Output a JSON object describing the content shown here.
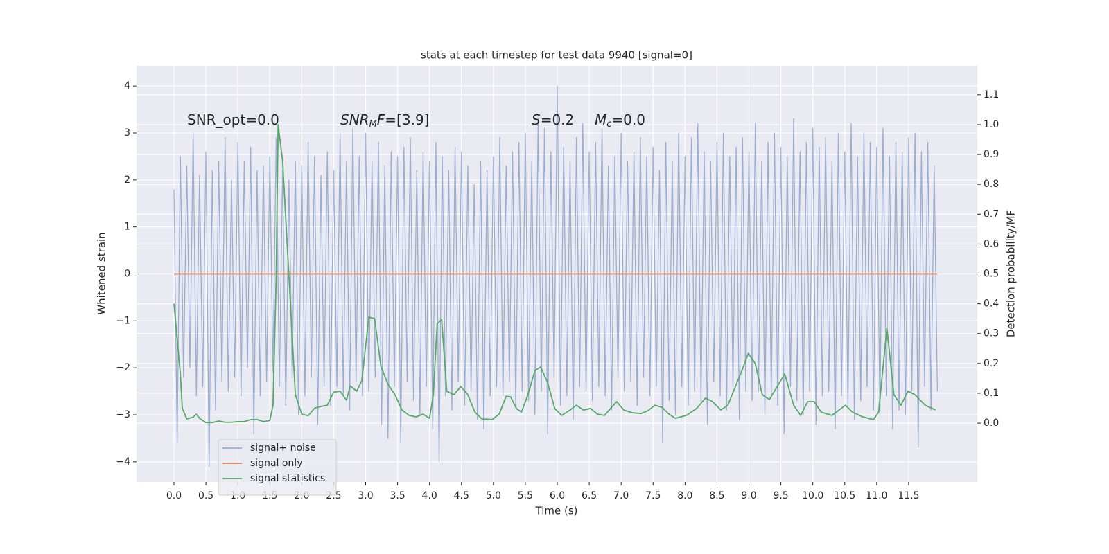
{
  "chart_data": {
    "type": "line",
    "title": "stats at each timestep for test data 9940 [signal=0]",
    "xlabel": "Time (s)",
    "ylabel": "Whitened strain",
    "y2label": "Detection probability/MF",
    "annotations": [
      [
        "SNR_opt=0.0"
      ],
      [
        "SNR",
        "M",
        "F",
        "=[3.9]"
      ],
      [
        "S",
        "=0.2"
      ],
      [
        "M",
        "c",
        "=0.0"
      ]
    ],
    "xlim": [
      -0.586,
      12.575
    ],
    "xticks": [
      {
        "value": 0,
        "label": "0.0"
      },
      0.5,
      {
        "value": 1,
        "label": "1.0"
      },
      1.5,
      {
        "value": 2,
        "label": "2.0"
      },
      2.5,
      {
        "value": 3,
        "label": "3.0"
      },
      3.5,
      {
        "value": 4,
        "label": "4.0"
      },
      4.5,
      {
        "value": 5,
        "label": "5.0"
      },
      5.5,
      {
        "value": 6,
        "label": "6.0"
      },
      6.5,
      {
        "value": 7,
        "label": "7.0"
      },
      7.5,
      {
        "value": 8,
        "label": "8.0"
      },
      8.5,
      {
        "value": 9,
        "label": "9.0"
      },
      9.5,
      {
        "value": 10,
        "label": "10.0"
      },
      10.5,
      {
        "value": 11,
        "label": "11.0"
      },
      11.5
    ],
    "ylim": [
      -4.43,
      4.43
    ],
    "yticks": [
      {
        "value": -4,
        "label": "−4"
      },
      {
        "value": -3,
        "label": "−3"
      },
      {
        "value": -2,
        "label": "−2"
      },
      {
        "value": -1,
        "label": "−1"
      },
      0,
      1,
      2,
      3,
      4
    ],
    "y2lim": [
      -0.197,
      1.197
    ],
    "y2ticks": [
      {
        "value": 0,
        "label": "0.0"
      },
      0.1,
      0.2,
      0.3,
      0.4,
      0.5,
      0.6,
      0.7,
      0.8,
      0.9,
      {
        "value": 1,
        "label": "1.0"
      },
      1.1
    ],
    "grid": true,
    "legend": "lower left",
    "series": [
      {
        "name": "signal+ noise",
        "color": "#4c72b0",
        "axis": "y",
        "x": [
          0,
          0.05,
          0.1,
          0.15,
          0.2,
          0.25,
          0.3,
          0.35,
          0.4,
          0.45,
          0.5,
          0.55,
          0.6,
          0.65,
          0.7,
          0.75,
          0.8,
          0.85,
          0.9,
          0.95,
          1,
          1.05,
          1.1,
          1.15,
          1.2,
          1.25,
          1.3,
          1.35,
          1.4,
          1.45,
          1.5,
          1.55,
          1.6,
          1.65,
          1.7,
          1.75,
          1.8,
          1.85,
          1.9,
          1.95,
          2,
          2.05,
          2.1,
          2.15,
          2.2,
          2.25,
          2.3,
          2.35,
          2.4,
          2.45,
          2.5,
          2.55,
          2.6,
          2.65,
          2.7,
          2.75,
          2.8,
          2.85,
          2.9,
          2.95,
          3,
          3.05,
          3.1,
          3.15,
          3.2,
          3.25,
          3.3,
          3.35,
          3.4,
          3.45,
          3.5,
          3.55,
          3.6,
          3.65,
          3.7,
          3.75,
          3.8,
          3.85,
          3.9,
          3.95,
          4,
          4.05,
          4.1,
          4.15,
          4.2,
          4.25,
          4.3,
          4.35,
          4.4,
          4.45,
          4.5,
          4.55,
          4.6,
          4.65,
          4.7,
          4.75,
          4.8,
          4.85,
          4.9,
          4.95,
          5,
          5.05,
          5.1,
          5.15,
          5.2,
          5.25,
          5.3,
          5.35,
          5.4,
          5.45,
          5.5,
          5.55,
          5.6,
          5.65,
          5.7,
          5.75,
          5.8,
          5.85,
          5.9,
          5.95,
          6,
          6.05,
          6.1,
          6.15,
          6.2,
          6.25,
          6.3,
          6.35,
          6.4,
          6.45,
          6.5,
          6.55,
          6.6,
          6.65,
          6.7,
          6.75,
          6.8,
          6.85,
          6.9,
          6.95,
          7,
          7.05,
          7.1,
          7.15,
          7.2,
          7.25,
          7.3,
          7.35,
          7.4,
          7.45,
          7.5,
          7.55,
          7.6,
          7.65,
          7.7,
          7.75,
          7.8,
          7.85,
          7.9,
          7.95,
          8,
          8.05,
          8.1,
          8.15,
          8.2,
          8.25,
          8.3,
          8.35,
          8.4,
          8.45,
          8.5,
          8.55,
          8.6,
          8.65,
          8.7,
          8.75,
          8.8,
          8.85,
          8.9,
          8.95,
          9,
          9.05,
          9.1,
          9.15,
          9.2,
          9.25,
          9.3,
          9.35,
          9.4,
          9.45,
          9.5,
          9.55,
          9.6,
          9.65,
          9.7,
          9.75,
          9.8,
          9.85,
          9.9,
          9.95,
          10,
          10.05,
          10.1,
          10.15,
          10.2,
          10.25,
          10.3,
          10.35,
          10.4,
          10.45,
          10.5,
          10.55,
          10.6,
          10.65,
          10.7,
          10.75,
          10.8,
          10.85,
          10.9,
          10.95,
          11,
          11.05,
          11.1,
          11.15,
          11.2,
          11.25,
          11.3,
          11.35,
          11.4,
          11.45,
          11.5,
          11.55,
          11.6,
          11.65,
          11.7,
          11.75,
          11.8,
          11.85,
          11.9,
          11.95
        ],
        "values": [
          1.8,
          -3.6,
          2.5,
          -2.2,
          2.3,
          -2.0,
          3.0,
          -2.6,
          2.1,
          -2.4,
          2.6,
          -4.1,
          2.2,
          -2.9,
          2.4,
          -2.3,
          2.9,
          -2.5,
          2.0,
          -2.2,
          2.8,
          -2.6,
          2.4,
          -2.0,
          2.7,
          -3.4,
          2.2,
          -2.6,
          2.3,
          -2.3,
          2.5,
          -2.1,
          2.9,
          -2.4,
          2.2,
          -2.8,
          2.0,
          -2.2,
          2.4,
          -3.0,
          2.3,
          -2.6,
          2.8,
          -2.2,
          2.5,
          -3.2,
          2.1,
          -2.4,
          2.6,
          -2.8,
          2.2,
          -2.4,
          3.0,
          -2.6,
          2.4,
          -2.9,
          3.1,
          -2.3,
          2.5,
          -2.6,
          3.0,
          -2.5,
          2.4,
          -2.2,
          2.8,
          -3.2,
          2.3,
          -3.5,
          2.6,
          -2.4,
          2.5,
          -3.6,
          2.7,
          -2.3,
          2.9,
          -2.7,
          2.2,
          -3.0,
          2.6,
          -2.4,
          2.4,
          -3.3,
          2.8,
          -4.0,
          2.5,
          -2.6,
          2.2,
          -2.9,
          2.7,
          -2.3,
          2.6,
          -2.8,
          2.3,
          -2.5,
          1.9,
          -3.1,
          2.4,
          -3.3,
          2.2,
          -2.6,
          2.5,
          -2.4,
          2.9,
          -2.6,
          2.3,
          -2.3,
          2.6,
          -2.8,
          2.8,
          -2.5,
          3.0,
          -2.7,
          2.4,
          -3.0,
          3.3,
          -2.5,
          3.1,
          -3.4,
          2.6,
          -2.2,
          4.0,
          -2.8,
          2.7,
          -2.6,
          2.4,
          -3.1,
          2.9,
          -2.4,
          3.2,
          -2.5,
          2.6,
          -2.7,
          2.8,
          -2.4,
          3.1,
          -2.6,
          2.3,
          -2.9,
          2.5,
          -2.2,
          3.0,
          -2.5,
          2.4,
          -2.3,
          2.6,
          -2.8,
          2.9,
          -2.2,
          2.5,
          -2.6,
          2.7,
          -2.4,
          2.2,
          -3.6,
          2.8,
          -2.7,
          2.4,
          -3.0,
          3.0,
          -2.4,
          2.5,
          -2.8,
          2.9,
          -2.5,
          3.2,
          -2.7,
          2.6,
          -3.2,
          2.4,
          -2.3,
          2.8,
          -2.6,
          3.0,
          -2.9,
          2.5,
          -2.4,
          2.7,
          -3.1,
          2.9,
          -2.5,
          2.6,
          -2.7,
          3.2,
          -2.5,
          2.4,
          -3.0,
          2.8,
          -2.6,
          3.0,
          -2.8,
          2.7,
          -3.4,
          2.5,
          -2.4,
          3.3,
          -2.7,
          2.6,
          -3.0,
          2.8,
          -2.5,
          3.1,
          -3.2,
          2.7,
          -2.6,
          2.9,
          -2.5,
          2.4,
          -3.3,
          3.0,
          -2.6,
          2.6,
          -2.8,
          3.2,
          -3.1,
          2.5,
          -2.7,
          3.0,
          -2.4,
          2.8,
          -2.9,
          2.7,
          -3.0,
          3.1,
          -2.6,
          2.5,
          -3.3,
          2.8,
          -2.9,
          2.6,
          -3.0,
          2.9,
          -2.5,
          3.0,
          -3.7,
          2.6,
          -2.4,
          2.8,
          -2.9,
          2.3,
          -2.5
        ]
      },
      {
        "name": "signal only",
        "color": "#dd8452",
        "axis": "y",
        "x": [
          0,
          11.95
        ],
        "values": [
          0,
          0
        ]
      },
      {
        "name": "signal statistics",
        "color": "#55a868",
        "axis": "y2",
        "x": [
          0,
          0.1,
          0.13,
          0.2,
          0.3,
          0.35,
          0.4,
          0.5,
          0.6,
          0.7,
          0.8,
          0.9,
          1.0,
          1.1,
          1.2,
          1.3,
          1.4,
          1.5,
          1.55,
          1.6,
          1.63,
          1.7,
          1.8,
          1.9,
          2.0,
          2.1,
          2.2,
          2.3,
          2.4,
          2.5,
          2.6,
          2.7,
          2.76,
          2.86,
          2.94,
          3.05,
          3.14,
          3.24,
          3.35,
          3.46,
          3.57,
          3.68,
          3.79,
          3.9,
          4.0,
          4.06,
          4.12,
          4.19,
          4.27,
          4.38,
          4.49,
          4.6,
          4.71,
          4.82,
          4.98,
          5.09,
          5.2,
          5.27,
          5.36,
          5.44,
          5.54,
          5.65,
          5.74,
          5.85,
          5.96,
          6.07,
          6.2,
          6.3,
          6.41,
          6.52,
          6.63,
          6.74,
          6.85,
          6.93,
          7.04,
          7.17,
          7.31,
          7.42,
          7.53,
          7.64,
          7.75,
          7.85,
          8.02,
          8.18,
          8.32,
          8.43,
          8.56,
          8.67,
          8.78,
          8.89,
          8.99,
          9.1,
          9.21,
          9.32,
          9.43,
          9.56,
          9.7,
          9.81,
          9.92,
          10.02,
          10.13,
          10.3,
          10.51,
          10.62,
          10.78,
          10.95,
          11.03,
          11.16,
          11.27,
          11.38,
          11.49,
          11.6,
          11.76,
          11.92
        ],
        "values": [
          0.4,
          0.165,
          0.05,
          0.014,
          0.02,
          0.03,
          0.016,
          0.002,
          0.002,
          0.007,
          0.003,
          0.003,
          0.005,
          0.005,
          0.012,
          0.012,
          0.005,
          0.009,
          0.06,
          0.49,
          1.0,
          0.88,
          0.49,
          0.095,
          0.03,
          0.025,
          0.05,
          0.056,
          0.06,
          0.104,
          0.107,
          0.077,
          0.125,
          0.107,
          0.142,
          0.355,
          0.35,
          0.19,
          0.13,
          0.095,
          0.044,
          0.026,
          0.021,
          0.03,
          0.016,
          0.095,
          0.333,
          0.347,
          0.107,
          0.095,
          0.123,
          0.095,
          0.037,
          0.014,
          0.012,
          0.03,
          0.09,
          0.088,
          0.049,
          0.037,
          0.095,
          0.176,
          0.188,
          0.135,
          0.049,
          0.026,
          0.044,
          0.06,
          0.044,
          0.049,
          0.03,
          0.026,
          0.053,
          0.072,
          0.044,
          0.035,
          0.032,
          0.042,
          0.06,
          0.053,
          0.03,
          0.016,
          0.026,
          0.049,
          0.084,
          0.072,
          0.044,
          0.06,
          0.118,
          0.176,
          0.234,
          0.199,
          0.095,
          0.079,
          0.118,
          0.165,
          0.06,
          0.026,
          0.072,
          0.072,
          0.037,
          0.026,
          0.06,
          0.037,
          0.021,
          0.012,
          0.037,
          0.318,
          0.095,
          0.06,
          0.107,
          0.095,
          0.06,
          0.044
        ]
      }
    ]
  }
}
